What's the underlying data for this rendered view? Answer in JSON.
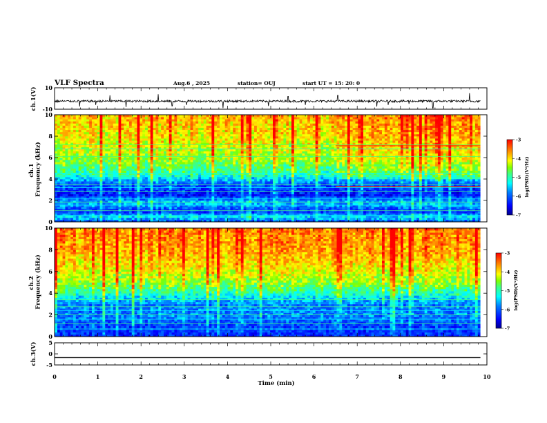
{
  "header": {
    "title": "VLF Spectra",
    "date": "Aug.6  , 2025",
    "station": "station= OUJ",
    "start": "start  UT  =   15: 20: 0"
  },
  "colors": {
    "colormap": [
      "#00008f",
      "#0000ff",
      "#0080ff",
      "#00ffff",
      "#40ff80",
      "#80ff00",
      "#ffff00",
      "#ff8000",
      "#ff0000"
    ],
    "trace": "#000000"
  },
  "chart_data": [
    {
      "type": "line",
      "name": "ch1-waveform",
      "ylabel": "ch.1(V)",
      "ylim": [
        -10,
        10
      ],
      "yticks": [
        {
          "v": 10,
          "label": "10"
        },
        {
          "v": -10,
          "label": "-10"
        }
      ],
      "baseline": -2.5,
      "noise_amplitude": 1.0,
      "spikes": [
        {
          "t": 0.58,
          "v": -7.5
        },
        {
          "t": 0.95,
          "v": -6
        },
        {
          "t": 1.28,
          "v": 3
        },
        {
          "t": 1.65,
          "v": -8
        },
        {
          "t": 2.4,
          "v": 4
        },
        {
          "t": 2.72,
          "v": -7
        },
        {
          "t": 3.05,
          "v": -6
        },
        {
          "t": 3.9,
          "v": -9
        },
        {
          "t": 4.95,
          "v": -7
        },
        {
          "t": 5.4,
          "v": 2
        },
        {
          "t": 5.8,
          "v": -6
        },
        {
          "t": 6.55,
          "v": 3
        },
        {
          "t": 7.45,
          "v": -7.5
        },
        {
          "t": 7.72,
          "v": -6
        },
        {
          "t": 8.2,
          "v": -5
        },
        {
          "t": 8.75,
          "v": -9
        },
        {
          "t": 9.6,
          "v": 5
        }
      ],
      "xlim": [
        0,
        9.85
      ]
    },
    {
      "type": "heatmap",
      "name": "ch1-spectrogram",
      "ylabel": "ch.1\nFrequency  (kHz)",
      "ylim": [
        0,
        10
      ],
      "xlim": [
        0,
        9.85
      ],
      "yticks": [
        0,
        2,
        4,
        6,
        8,
        10
      ],
      "zlim": [
        -7,
        -3
      ],
      "colorbar": {
        "label": "log(PSD)(V²/Hz)",
        "ticks": [
          {
            "v": -3,
            "label": "-3"
          },
          {
            "v": -4,
            "label": "-4"
          },
          {
            "v": -5,
            "label": "-5"
          },
          {
            "v": -6,
            "label": "-6"
          },
          {
            "v": -7,
            "label": "-7"
          }
        ]
      },
      "band_profile": [
        {
          "f": 0,
          "z": -6.2
        },
        {
          "f": 0.5,
          "z": -5.5
        },
        {
          "f": 1.0,
          "z": -6.4
        },
        {
          "f": 1.8,
          "z": -5.6
        },
        {
          "f": 2.5,
          "z": -6.5
        },
        {
          "f": 3.5,
          "z": -6.2
        },
        {
          "f": 4.5,
          "z": -5.2
        },
        {
          "f": 6.0,
          "z": -4.6
        },
        {
          "f": 8.0,
          "z": -4.3
        },
        {
          "f": 10.0,
          "z": -4.1
        }
      ],
      "late_enhancement": {
        "from_t": 6.5,
        "dz": -0.3
      },
      "lines_khz": [
        0.6,
        1.05,
        1.55,
        1.85,
        2.2,
        2.8,
        3.2,
        3.5,
        4.5,
        6.1,
        6.8,
        7.2
      ],
      "red_lines": [
        {
          "f": 7.1,
          "t0": 6.5,
          "t1": 9.85
        },
        {
          "f": 3.3,
          "t0": 6.5,
          "t1": 9.85
        }
      ]
    },
    {
      "type": "heatmap",
      "name": "ch2-spectrogram",
      "ylabel": "ch.2\nFrequency  (kHz)",
      "ylim": [
        0,
        10
      ],
      "xlim": [
        0,
        9.85
      ],
      "yticks": [
        0,
        2,
        4,
        6,
        8,
        10
      ],
      "zlim": [
        -7,
        -3
      ],
      "colorbar": {
        "label": "log(PSD)(V²/Hz)",
        "ticks": [
          {
            "v": -3,
            "label": "-3"
          },
          {
            "v": -4,
            "label": "-4"
          },
          {
            "v": -5,
            "label": "-5"
          },
          {
            "v": -6,
            "label": "-6"
          },
          {
            "v": -7,
            "label": "-7"
          }
        ]
      },
      "band_profile": [
        {
          "f": 0,
          "z": -6.4
        },
        {
          "f": 1.0,
          "z": -6.2
        },
        {
          "f": 2.0,
          "z": -5.9
        },
        {
          "f": 3.0,
          "z": -6.0
        },
        {
          "f": 4.0,
          "z": -5.2
        },
        {
          "f": 5.0,
          "z": -4.6
        },
        {
          "f": 6.5,
          "z": -4.2
        },
        {
          "f": 8.0,
          "z": -3.9
        },
        {
          "f": 10.0,
          "z": -3.8
        }
      ],
      "late_enhancement": {
        "from_t": 6.5,
        "dz": 0
      },
      "lines_khz": [
        0.7,
        1.2,
        1.6,
        2.0,
        2.4,
        2.75,
        3.1,
        3.4
      ],
      "red_lines": []
    },
    {
      "type": "line",
      "name": "ch3-waveform",
      "ylabel": "ch.3(V)",
      "ylim": [
        -5,
        5
      ],
      "yticks": [
        {
          "v": 5,
          "label": "5"
        },
        {
          "v": 0,
          "label": "0"
        },
        {
          "v": -5,
          "label": "-5"
        }
      ],
      "baseline": -1.7,
      "noise_amplitude": 0,
      "spikes": [],
      "xlim": [
        0,
        9.85
      ]
    }
  ],
  "xaxis": {
    "label": "Time  (min)",
    "xlim": [
      0,
      10
    ],
    "ticks": [
      {
        "v": 0,
        "label": "0"
      },
      {
        "v": 1,
        "label": "1"
      },
      {
        "v": 2,
        "label": "2"
      },
      {
        "v": 3,
        "label": "3"
      },
      {
        "v": 4,
        "label": "4"
      },
      {
        "v": 5,
        "label": "5"
      },
      {
        "v": 6,
        "label": "6"
      },
      {
        "v": 7,
        "label": "7"
      },
      {
        "v": 8,
        "label": "8"
      },
      {
        "v": 9,
        "label": "9"
      },
      {
        "v": 10,
        "label": "10"
      }
    ]
  }
}
